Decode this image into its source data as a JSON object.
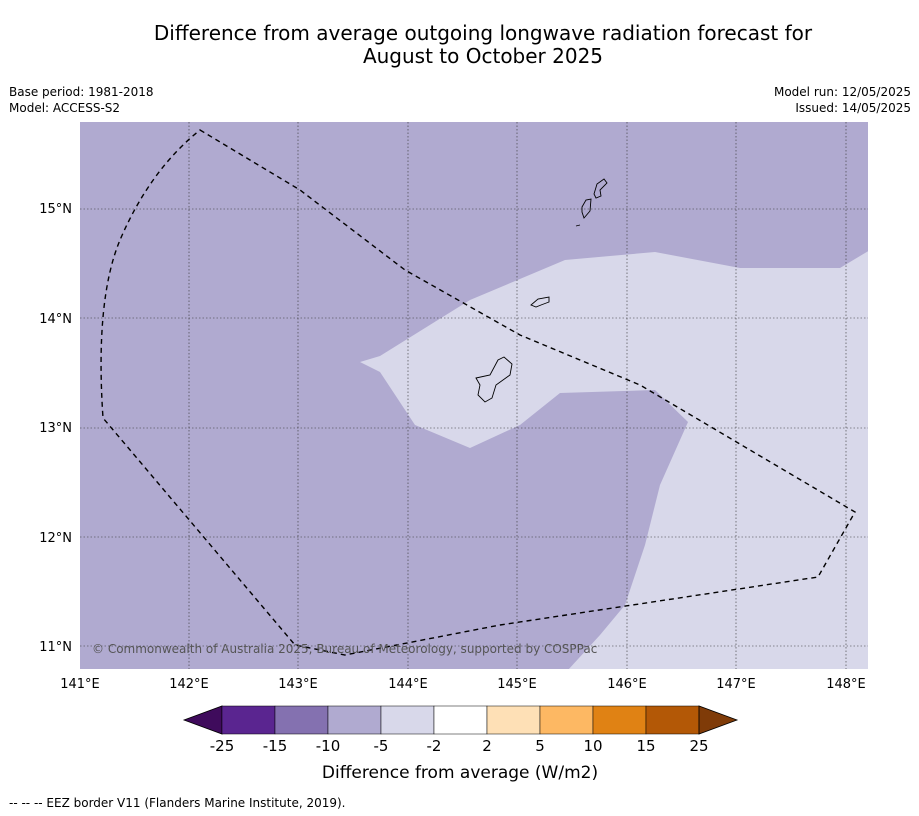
{
  "title_line1": "Difference from average outgoing longwave radiation forecast for",
  "title_line2": "August to October 2025",
  "meta_left": {
    "base_period": "Base period: 1981-2018",
    "model": "Model: ACCESS-S2"
  },
  "meta_right": {
    "model_run": "Model run: 12/05/2025",
    "issued": "Issued: 14/05/2025"
  },
  "map": {
    "lon_range": [
      141,
      148.2
    ],
    "lat_range": [
      10.8,
      15.8
    ],
    "lon_ticks": [
      "141°E",
      "142°E",
      "143°E",
      "144°E",
      "145°E",
      "146°E",
      "147°E",
      "148°E"
    ],
    "lat_ticks": [
      "15°N",
      "14°N",
      "13°N",
      "12°N",
      "11°N"
    ],
    "copyright": "© Commonwealth of Australia 2025, Bureau of Meteorology, supported by COSPPac",
    "colors": {
      "band_m10_m5": "#b0aad0",
      "band_m5_m2": "#d8d8ea"
    }
  },
  "colorbar": {
    "labels": [
      "-25",
      "-15",
      "-10",
      "-5",
      "-2",
      "2",
      "5",
      "10",
      "15",
      "25"
    ],
    "colors": [
      "#3f0b5c",
      "#5a2590",
      "#8471b0",
      "#b0aad0",
      "#d8d8ea",
      "#ffffff",
      "#fee0b6",
      "#fdb863",
      "#e08214",
      "#b35806",
      "#7f3b08"
    ],
    "title": "Difference from average (W/m2)"
  },
  "footer": "--  --  -- EEZ border V11 (Flanders Marine Institute, 2019)."
}
